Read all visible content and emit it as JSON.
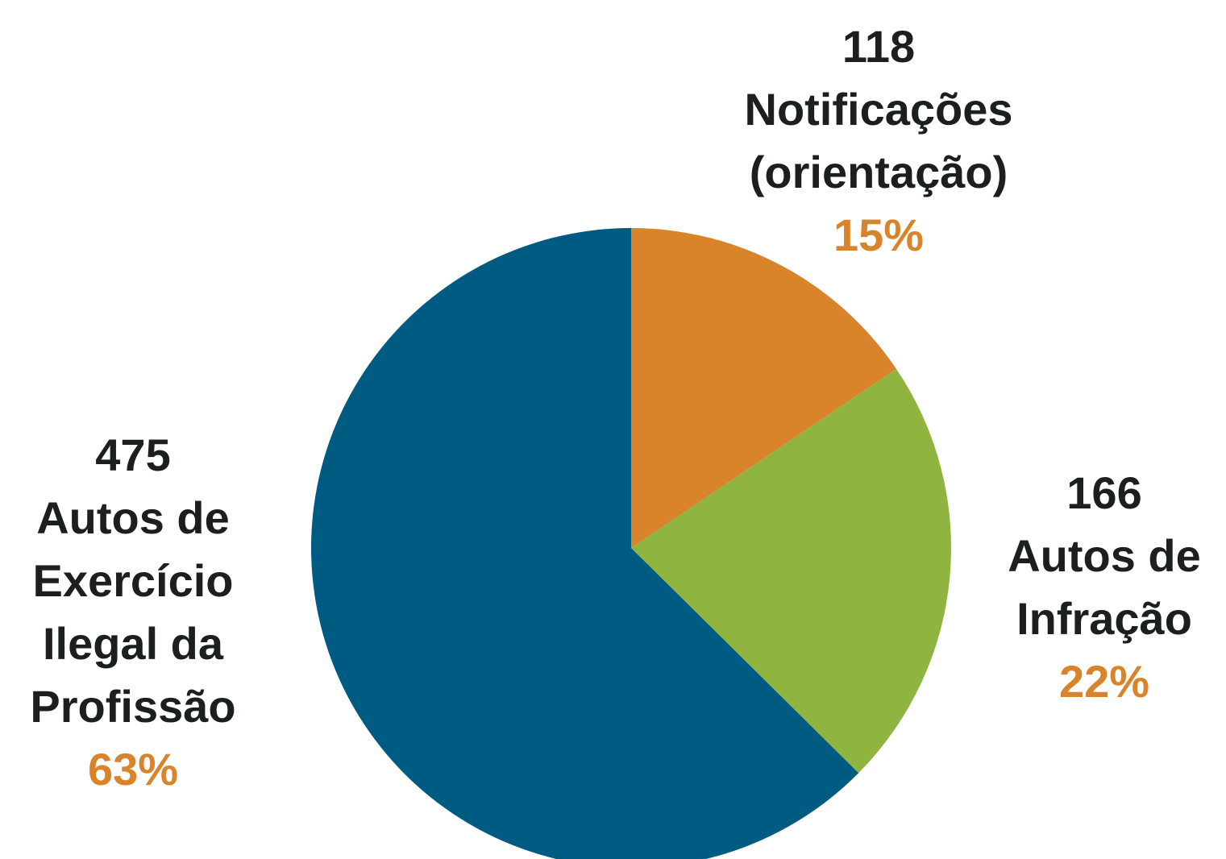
{
  "chart_data": {
    "type": "pie",
    "categories": [
      "Notificações (orientação)",
      "Autos de Infração",
      "Autos de Exercício Ilegal da Profissão"
    ],
    "values": [
      118,
      166,
      475
    ],
    "shares": [
      15,
      22,
      63
    ],
    "share_labels": [
      "15%",
      "22%",
      "63%"
    ],
    "colors": [
      "#d9832a",
      "#8fb440",
      "#005b82"
    ]
  }
}
